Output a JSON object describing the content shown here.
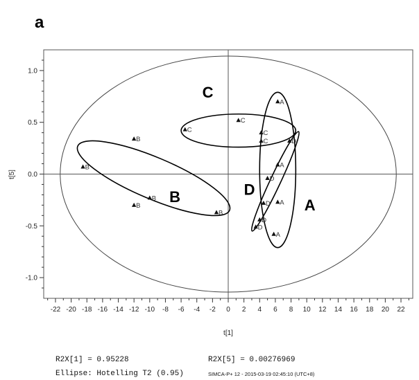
{
  "panel_letter": "a",
  "footer": {
    "r2x1": "R2X[1] = 0.95228",
    "r2x5": "R2X[5] = 0.00276969",
    "ellipse_note": "Ellipse: Hotelling T2 (0.95)",
    "software": "SIMCA-P+ 12 - 2015-03-19 02:45:10 (UTC+8)"
  },
  "chart_data": {
    "type": "scatter",
    "xlabel": "t[1]",
    "ylabel": "t[5]",
    "xlim": [
      -23.5,
      23.5
    ],
    "ylim": [
      -1.2,
      1.2
    ],
    "x_ticks": [
      -22,
      -20,
      -18,
      -16,
      -14,
      -12,
      -10,
      -8,
      -6,
      -4,
      -2,
      0,
      2,
      4,
      6,
      8,
      10,
      12,
      14,
      16,
      18,
      20,
      22
    ],
    "y_ticks": [
      -1.0,
      -0.5,
      0.0,
      0.5,
      1.0
    ],
    "y_tick_labels": [
      "-1.0",
      "-0.5",
      "0.0",
      "0.5",
      "1.0"
    ],
    "marker": "triangle",
    "points": [
      {
        "x": -18.5,
        "y": 0.07,
        "label": "B"
      },
      {
        "x": -12,
        "y": 0.34,
        "label": "B"
      },
      {
        "x": -12,
        "y": -0.3,
        "label": "B"
      },
      {
        "x": -10,
        "y": -0.23,
        "label": "B"
      },
      {
        "x": -1.5,
        "y": -0.37,
        "label": "B"
      },
      {
        "x": -5.5,
        "y": 0.43,
        "label": "C"
      },
      {
        "x": 1.3,
        "y": 0.52,
        "label": "C"
      },
      {
        "x": 4.2,
        "y": 0.4,
        "label": "C"
      },
      {
        "x": 4.2,
        "y": 0.32,
        "label": "C"
      },
      {
        "x": 6.3,
        "y": 0.7,
        "label": "A"
      },
      {
        "x": 6.3,
        "y": 0.09,
        "label": "A"
      },
      {
        "x": 6.3,
        "y": -0.27,
        "label": "A"
      },
      {
        "x": 5.8,
        "y": -0.58,
        "label": "A"
      },
      {
        "x": 7.8,
        "y": 0.32,
        "label": "D"
      },
      {
        "x": 5.0,
        "y": -0.04,
        "label": "D"
      },
      {
        "x": 4.5,
        "y": -0.28,
        "label": "D"
      },
      {
        "x": 4.0,
        "y": -0.44,
        "label": "D"
      },
      {
        "x": 3.5,
        "y": -0.51,
        "label": "D"
      }
    ],
    "groups": [
      {
        "name": "C",
        "label_at": [
          -3.3,
          0.74
        ],
        "ellipse": {
          "cx": 1.3,
          "cy": 0.42,
          "rx": 7.3,
          "ry": 0.16,
          "rotate": 0
        }
      },
      {
        "name": "B",
        "label_at": [
          -7.5,
          -0.27
        ],
        "ellipse": {
          "cx": -9.5,
          "cy": -0.04,
          "rx": 10.5,
          "ry": 0.2,
          "rotate": 23
        }
      },
      {
        "name": "D",
        "label_at": [
          2.0,
          -0.2
        ],
        "ellipse": {
          "cx": 6.0,
          "cy": -0.07,
          "rx": 7.0,
          "ry": 0.05,
          "rotate": -65
        }
      },
      {
        "name": "A",
        "label_at": [
          9.7,
          -0.35
        ],
        "ellipse": {
          "cx": 6.3,
          "cy": 0.04,
          "rx": 2.3,
          "ry": 0.75,
          "rotate": 0
        }
      }
    ],
    "hotelling_ellipse": {
      "cx": 0,
      "cy": 0,
      "rx": 21.4,
      "ry": 1.14
    }
  }
}
